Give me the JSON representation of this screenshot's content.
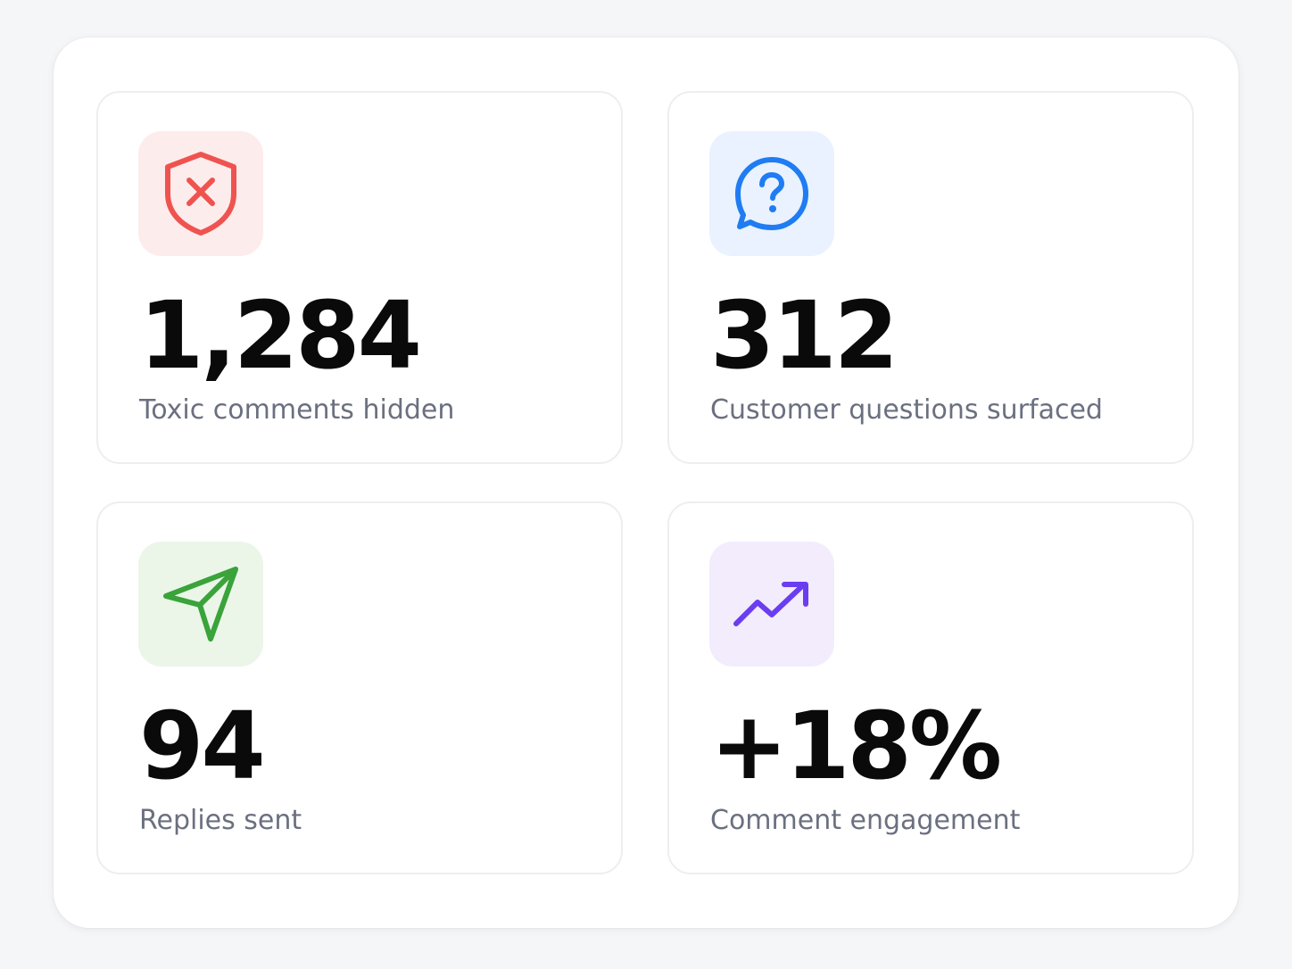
{
  "stats": [
    {
      "value": "1,284",
      "label": "Toxic comments hidden",
      "icon": "shield-x-icon",
      "accent": "#ef5350",
      "tile_bg": "#fdecec"
    },
    {
      "value": "312",
      "label": "Customer questions surfaced",
      "icon": "question-bubble-icon",
      "accent": "#1f7cf2",
      "tile_bg": "#e9f2fe"
    },
    {
      "value": "94",
      "label": "Replies sent",
      "icon": "send-icon",
      "accent": "#3aa33a",
      "tile_bg": "#ebf6e9"
    },
    {
      "value": "+18%",
      "label": "Comment engagement",
      "icon": "trending-up-icon",
      "accent": "#6a3df0",
      "tile_bg": "#f2ecfd"
    }
  ]
}
